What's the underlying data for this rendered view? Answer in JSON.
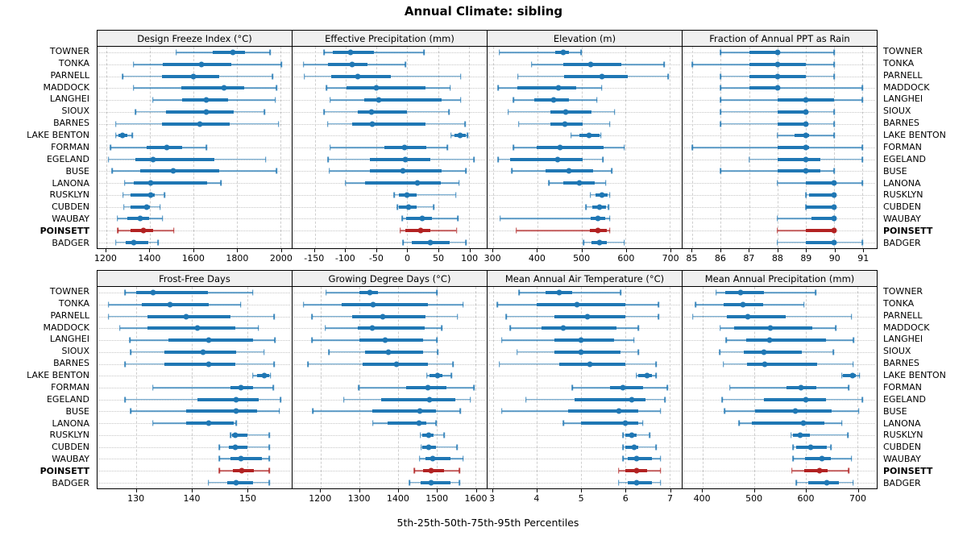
{
  "chart_data": {
    "type": "scatter",
    "subtype": "percentile-range-dotplot-trellis",
    "title": "Annual Climate: sibling",
    "caption": "5th-25th-50th-75th-95th Percentiles",
    "legend": "none",
    "grid": true,
    "percentiles": [
      5,
      25,
      50,
      75,
      95
    ],
    "categories": [
      "TOWNER",
      "TONKA",
      "PARNELL",
      "MADDOCK",
      "LANGHEI",
      "SIOUX",
      "BARNES",
      "LAKE BENTON",
      "FORMAN",
      "EGELAND",
      "BUSE",
      "LANONA",
      "RUSKLYN",
      "CUBDEN",
      "WAUBAY",
      "POINSETT",
      "BADGER"
    ],
    "highlight_category": "POINSETT",
    "colors": {
      "series": "#1f77b4",
      "highlight": "#b22222",
      "strip_bg": "#f0f0f0",
      "grid": "#cccccc",
      "panel_border": "#000000"
    },
    "panels": [
      {
        "title": "Design Freeze Index (°C)",
        "xlim": [
          1160,
          2052
        ],
        "xticks": [
          1200,
          1400,
          1600,
          1800,
          2000
        ],
        "values": [
          [
            1522,
            1689,
            1782,
            1837,
            1952
          ],
          [
            1325,
            1461,
            1637,
            1776,
            2004
          ],
          [
            1275,
            1457,
            1599,
            1718,
            1964
          ],
          [
            1325,
            1545,
            1742,
            1834,
            1982
          ],
          [
            1414,
            1550,
            1658,
            1760,
            1977
          ],
          [
            1335,
            1475,
            1661,
            1784,
            1926
          ],
          [
            1244,
            1457,
            1630,
            1766,
            1992
          ],
          [
            1244,
            1257,
            1275,
            1298,
            1319
          ],
          [
            1220,
            1386,
            1479,
            1549,
            1661
          ],
          [
            1211,
            1335,
            1415,
            1695,
            1932
          ],
          [
            1228,
            1356,
            1508,
            1718,
            1982
          ],
          [
            1285,
            1325,
            1405,
            1664,
            1726
          ],
          [
            1278,
            1312,
            1406,
            1421,
            1467
          ],
          [
            1281,
            1310,
            1387,
            1399,
            1448
          ],
          [
            1251,
            1298,
            1356,
            1396,
            1458
          ],
          [
            1253,
            1310,
            1372,
            1414,
            1510
          ],
          [
            1244,
            1290,
            1328,
            1393,
            1438
          ]
        ]
      },
      {
        "title": "Effective Precipitation (mm)",
        "xlim": [
          -186,
          129
        ],
        "xticks": [
          -150,
          -100,
          -50,
          0,
          50,
          100
        ],
        "values": [
          [
            -135,
            -121,
            -92,
            -54,
            27
          ],
          [
            -168,
            -128,
            -89,
            -64,
            -3
          ],
          [
            -167,
            -123,
            -80,
            -27,
            87
          ],
          [
            -131,
            -98,
            -50,
            30,
            70
          ],
          [
            -125,
            -70,
            -46,
            56,
            87
          ],
          [
            -135,
            -80,
            -58,
            -1,
            68
          ],
          [
            -129,
            -89,
            -56,
            30,
            94
          ],
          [
            71,
            77,
            86,
            95,
            98
          ],
          [
            -125,
            -37,
            -4,
            31,
            65
          ],
          [
            -128,
            -61,
            -3,
            38,
            108
          ],
          [
            -126,
            -61,
            -7,
            56,
            95
          ],
          [
            -100,
            -68,
            17,
            54,
            84
          ],
          [
            -21,
            -14,
            -1,
            15,
            79
          ],
          [
            -16,
            -13,
            2,
            15,
            43
          ],
          [
            -8,
            -2,
            24,
            40,
            82
          ],
          [
            -11,
            -3,
            22,
            38,
            80
          ],
          [
            -7,
            7,
            37,
            69,
            95
          ]
        ]
      },
      {
        "title": "Elevation (m)",
        "xlim": [
          287,
          727
        ],
        "xticks": [
          300,
          400,
          500,
          600,
          700
        ],
        "values": [
          [
            314,
            441,
            459,
            471,
            499
          ],
          [
            387,
            459,
            520,
            590,
            687
          ],
          [
            356,
            461,
            546,
            605,
            696
          ],
          [
            311,
            355,
            447,
            487,
            546
          ],
          [
            346,
            393,
            436,
            471,
            535
          ],
          [
            334,
            429,
            465,
            523,
            575
          ],
          [
            358,
            429,
            462,
            502,
            564
          ],
          [
            476,
            496,
            517,
            541,
            544
          ],
          [
            346,
            398,
            452,
            550,
            597
          ],
          [
            311,
            338,
            445,
            502,
            548
          ],
          [
            342,
            419,
            471,
            526,
            568
          ],
          [
            426,
            459,
            496,
            529,
            555
          ],
          [
            520,
            532,
            546,
            559,
            564
          ],
          [
            510,
            525,
            541,
            556,
            561
          ],
          [
            316,
            520,
            538,
            553,
            564
          ],
          [
            352,
            518,
            538,
            558,
            564
          ],
          [
            505,
            523,
            541,
            558,
            597
          ]
        ]
      },
      {
        "title": "Fraction of Annual PPT as Rain",
        "xlim": [
          84.65,
          91.5
        ],
        "xticks": [
          85,
          86,
          87,
          88,
          89,
          90,
          91
        ],
        "values": [
          [
            86,
            87,
            88,
            88,
            90
          ],
          [
            85,
            87,
            88,
            89,
            90
          ],
          [
            86,
            87,
            88,
            89,
            90
          ],
          [
            86,
            87,
            88,
            88,
            91
          ],
          [
            86,
            88,
            89,
            90,
            91
          ],
          [
            86,
            88,
            89,
            89,
            90
          ],
          [
            86,
            88,
            89,
            89,
            90
          ],
          [
            88,
            88.6,
            89,
            89.1,
            90
          ],
          [
            85,
            88,
            89,
            89.1,
            91
          ],
          [
            87,
            88,
            89,
            89.5,
            91
          ],
          [
            86,
            88,
            89,
            89.5,
            90
          ],
          [
            88,
            89,
            90,
            90,
            91
          ],
          [
            89,
            89.1,
            90,
            90,
            90
          ],
          [
            89,
            89,
            90,
            90,
            90
          ],
          [
            88,
            89.2,
            90,
            90,
            90
          ],
          [
            88,
            89,
            90,
            90,
            90
          ],
          [
            88,
            89,
            90,
            90,
            91
          ]
        ]
      },
      {
        "title": "Frost-Free Days",
        "xlim": [
          123,
          158
        ],
        "xticks": [
          130,
          140,
          150
        ],
        "values": [
          [
            128,
            130,
            133,
            142.9,
            151
          ],
          [
            125,
            131,
            136,
            143,
            148.8
          ],
          [
            125,
            132,
            139,
            147,
            154.8
          ],
          [
            127,
            132,
            141,
            147.8,
            152
          ],
          [
            128.8,
            135.8,
            143,
            151,
            155
          ],
          [
            129,
            135,
            142,
            148,
            153
          ],
          [
            128,
            135,
            143,
            147.8,
            154.8
          ],
          [
            151,
            151.7,
            153,
            154,
            154.2
          ],
          [
            133,
            147,
            148.8,
            151,
            154.7
          ],
          [
            128,
            141,
            148,
            152,
            156
          ],
          [
            129,
            139,
            148,
            151.8,
            155.8
          ],
          [
            133,
            139,
            143,
            147.6,
            148
          ],
          [
            147,
            147.3,
            147.8,
            150,
            154
          ],
          [
            145,
            146.6,
            147.8,
            150,
            154
          ],
          [
            145,
            147,
            148.8,
            152.7,
            154
          ],
          [
            145,
            147.4,
            149,
            151.2,
            154
          ],
          [
            143,
            146.4,
            148,
            151,
            154
          ]
        ]
      },
      {
        "title": "Growing Degree Days (°C)",
        "xlim": [
          1127,
          1630
        ],
        "xticks": [
          1200,
          1300,
          1400,
          1500,
          1600
        ],
        "values": [
          [
            1214,
            1300,
            1327,
            1349,
            1501
          ],
          [
            1156,
            1255,
            1336,
            1477,
            1569
          ],
          [
            1177,
            1281,
            1361,
            1471,
            1554
          ],
          [
            1212,
            1297,
            1333,
            1470,
            1513
          ],
          [
            1177,
            1300,
            1366,
            1465,
            1501
          ],
          [
            1221,
            1314,
            1376,
            1466,
            1503
          ],
          [
            1167,
            1309,
            1397,
            1477,
            1543
          ],
          [
            1475,
            1482,
            1503,
            1516,
            1539
          ],
          [
            1299,
            1421,
            1477,
            1525,
            1597
          ],
          [
            1260,
            1356,
            1482,
            1548,
            1588
          ],
          [
            1179,
            1333,
            1456,
            1498,
            1562
          ],
          [
            1335,
            1373,
            1455,
            1473,
            1499
          ],
          [
            1458,
            1462,
            1479,
            1493,
            1520
          ],
          [
            1460,
            1463,
            1480,
            1498,
            1553
          ],
          [
            1456,
            1471,
            1491,
            1536,
            1569
          ],
          [
            1442,
            1465,
            1486,
            1520,
            1560
          ],
          [
            1430,
            1458,
            1486,
            1536,
            1560
          ]
        ]
      },
      {
        "title": "Mean Annual Air Temperature (°C)",
        "xlim": [
          2.88,
          7.28
        ],
        "xticks": [
          3,
          4,
          5,
          6,
          7
        ],
        "values": [
          [
            3.6,
            4.2,
            4.5,
            4.8,
            5.9
          ],
          [
            3.1,
            4.0,
            4.9,
            6.0,
            6.75
          ],
          [
            3.3,
            4.4,
            5.15,
            6.0,
            6.75
          ],
          [
            3.4,
            4.1,
            4.6,
            5.8,
            6.3
          ],
          [
            3.2,
            4.4,
            5.0,
            5.75,
            6.2
          ],
          [
            3.55,
            4.4,
            5.0,
            5.9,
            6.3
          ],
          [
            3.15,
            4.5,
            5.2,
            6.0,
            6.7
          ],
          [
            6.25,
            6.3,
            6.5,
            6.6,
            6.7
          ],
          [
            4.8,
            5.65,
            5.95,
            6.4,
            6.95
          ],
          [
            3.75,
            4.85,
            6.15,
            6.45,
            6.9
          ],
          [
            3.2,
            4.7,
            5.85,
            6.3,
            6.8
          ],
          [
            4.6,
            5.0,
            6.0,
            6.3,
            6.4
          ],
          [
            5.95,
            6.0,
            6.15,
            6.25,
            6.55
          ],
          [
            5.95,
            6.0,
            6.2,
            6.3,
            6.7
          ],
          [
            5.95,
            6.05,
            6.25,
            6.6,
            6.8
          ],
          [
            5.85,
            6.0,
            6.25,
            6.5,
            6.8
          ],
          [
            5.85,
            6.05,
            6.25,
            6.6,
            6.8
          ]
        ]
      },
      {
        "title": "Mean Annual Precipitation (mm)",
        "xlim": [
          361,
          738
        ],
        "xticks": [
          400,
          500,
          600,
          700
        ],
        "values": [
          [
            426,
            444,
            474,
            519,
            619
          ],
          [
            386,
            440,
            479,
            518,
            597
          ],
          [
            381,
            447,
            487,
            562,
            689
          ],
          [
            434,
            461,
            531,
            613,
            659
          ],
          [
            446,
            485,
            530,
            639,
            693
          ],
          [
            433,
            480,
            519,
            592,
            654
          ],
          [
            440,
            486,
            520,
            623,
            692
          ],
          [
            670,
            672,
            691,
            698,
            705
          ],
          [
            453,
            563,
            591,
            621,
            684
          ],
          [
            438,
            519,
            601,
            640,
            710
          ],
          [
            443,
            502,
            580,
            651,
            703
          ],
          [
            471,
            496,
            596,
            636,
            670
          ],
          [
            572,
            576,
            589,
            608,
            682
          ],
          [
            576,
            582,
            609,
            641,
            649
          ],
          [
            576,
            599,
            631,
            649,
            689
          ],
          [
            573,
            597,
            627,
            642,
            684
          ],
          [
            582,
            605,
            641,
            665,
            692
          ]
        ]
      }
    ]
  }
}
